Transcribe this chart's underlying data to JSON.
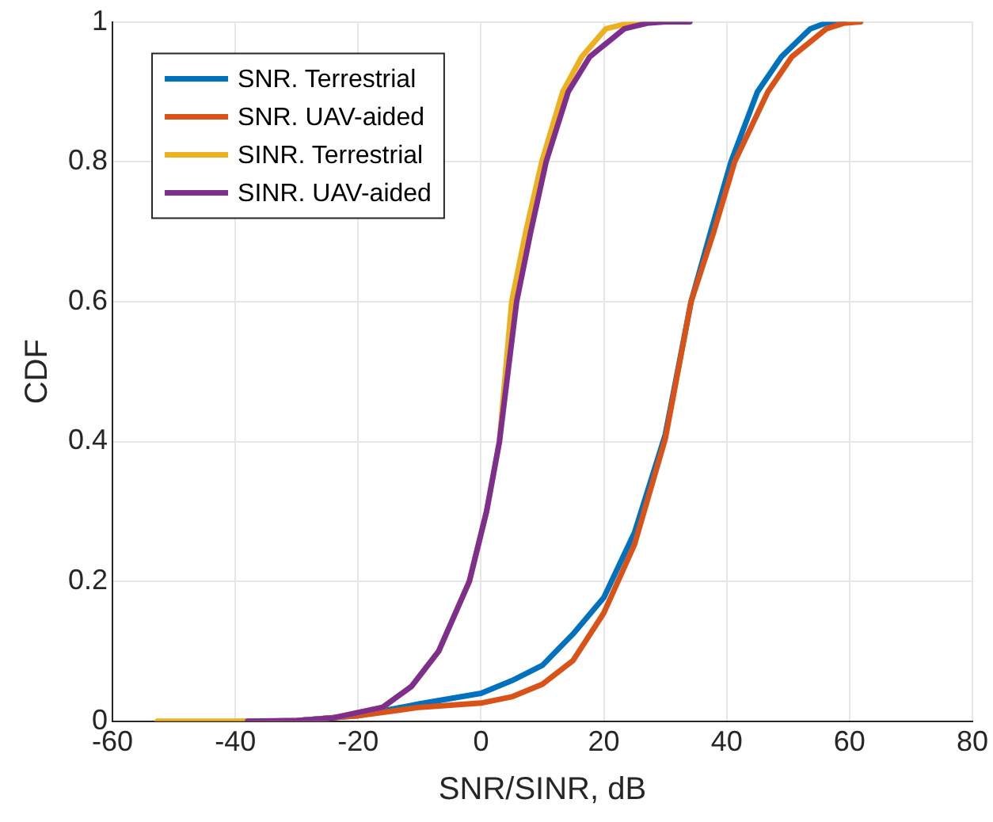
{
  "chart_data": {
    "type": "line",
    "xlabel": "SNR/SINR, dB",
    "ylabel": "CDF",
    "xlim": [
      -60,
      80
    ],
    "xticks": [
      -60,
      -40,
      -20,
      0,
      20,
      40,
      60,
      80
    ],
    "ylim": [
      0,
      1
    ],
    "yticks": [
      0,
      0.2,
      0.4,
      0.6,
      0.8,
      1
    ],
    "grid": true,
    "legend": "top left",
    "marker": "none",
    "line_style": "solid",
    "series": [
      {
        "name": "SNR. Terrestrial",
        "color": "#0072bd",
        "x": [
          -35,
          -30,
          -20,
          -10,
          0,
          5,
          10,
          15,
          20,
          25,
          30,
          34.2,
          37.4,
          40.7,
          45,
          48.9,
          53.6,
          56,
          59
        ],
        "values": [
          0,
          0.001,
          0.008,
          0.025,
          0.04,
          0.058,
          0.08,
          0.125,
          0.177,
          0.27,
          0.41,
          0.6,
          0.7,
          0.8,
          0.9,
          0.95,
          0.99,
          0.998,
          1
        ]
      },
      {
        "name": "SNR. UAV-aided",
        "color": "#d95319",
        "x": [
          -35,
          -30,
          -20,
          -10,
          0,
          5,
          10,
          15,
          20,
          25,
          30,
          34.2,
          37.9,
          41.3,
          46.7,
          50.6,
          56.2,
          59,
          61.8
        ],
        "values": [
          0,
          0.001,
          0.008,
          0.02,
          0.026,
          0.035,
          0.053,
          0.087,
          0.155,
          0.253,
          0.404,
          0.6,
          0.7,
          0.8,
          0.9,
          0.95,
          0.99,
          0.998,
          1
        ]
      },
      {
        "name": "SINR. Terrestrial",
        "color": "#edb120",
        "x": [
          -52.7,
          -40,
          -30,
          -24,
          -16,
          -11.3,
          -6.9,
          -1.9,
          0.9,
          3,
          5,
          7.3,
          9.9,
          13.3,
          16.4,
          20.3,
          24,
          28,
          33
        ],
        "values": [
          0,
          0,
          0.001,
          0.005,
          0.02,
          0.05,
          0.1,
          0.2,
          0.3,
          0.4,
          0.6,
          0.7,
          0.8,
          0.9,
          0.95,
          0.99,
          0.998,
          1,
          1
        ]
      },
      {
        "name": "SINR. UAV-aided",
        "color": "#7e2f8e",
        "x": [
          -38,
          -30,
          -24,
          -16,
          -11.3,
          -6.9,
          -1.9,
          0.9,
          3,
          5.8,
          8.1,
          10.6,
          14.2,
          17.7,
          23.3,
          27,
          30,
          34
        ],
        "values": [
          0,
          0.001,
          0.005,
          0.02,
          0.05,
          0.1,
          0.2,
          0.3,
          0.4,
          0.6,
          0.7,
          0.8,
          0.9,
          0.95,
          0.99,
          0.998,
          1,
          1
        ]
      }
    ]
  }
}
